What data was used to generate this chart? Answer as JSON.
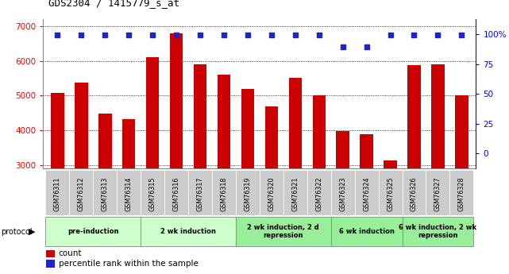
{
  "title": "GDS2304 / 1415779_s_at",
  "samples": [
    "GSM76311",
    "GSM76312",
    "GSM76313",
    "GSM76314",
    "GSM76315",
    "GSM76316",
    "GSM76317",
    "GSM76318",
    "GSM76319",
    "GSM76320",
    "GSM76321",
    "GSM76322",
    "GSM76323",
    "GSM76324",
    "GSM76325",
    "GSM76326",
    "GSM76327",
    "GSM76328"
  ],
  "counts": [
    5080,
    5380,
    4480,
    4320,
    6100,
    6800,
    5900,
    5600,
    5180,
    4680,
    5500,
    5000,
    3980,
    3880,
    3130,
    5870,
    5890,
    5010
  ],
  "percentiles": [
    99,
    99,
    99,
    99,
    99,
    99,
    99,
    99,
    99,
    99,
    99,
    99,
    89,
    89,
    99,
    99,
    99,
    99
  ],
  "bar_color": "#cc0000",
  "dot_color": "#2222cc",
  "ylim_left": [
    2900,
    7200
  ],
  "yticks_left": [
    3000,
    4000,
    5000,
    6000,
    7000
  ],
  "ylim_right": [
    -12.5,
    112.5
  ],
  "yticks_right": [
    0,
    25,
    50,
    75,
    100
  ],
  "yticklabels_right": [
    "0",
    "25",
    "50",
    "75",
    "100%"
  ],
  "groups": [
    {
      "label": "pre-induction",
      "start": 0,
      "end": 3,
      "color": "#ccffcc"
    },
    {
      "label": "2 wk induction",
      "start": 4,
      "end": 7,
      "color": "#ccffcc"
    },
    {
      "label": "2 wk induction, 2 d\nrepression",
      "start": 8,
      "end": 11,
      "color": "#99ee99"
    },
    {
      "label": "6 wk induction",
      "start": 12,
      "end": 14,
      "color": "#99ee99"
    },
    {
      "label": "6 wk induction, 2 wk\nrepression",
      "start": 15,
      "end": 17,
      "color": "#99ee99"
    }
  ],
  "protocol_label": "protocol",
  "legend_count_label": "count",
  "legend_percentile_label": "percentile rank within the sample",
  "background_color": "#ffffff",
  "xtick_bg": "#dddddd"
}
